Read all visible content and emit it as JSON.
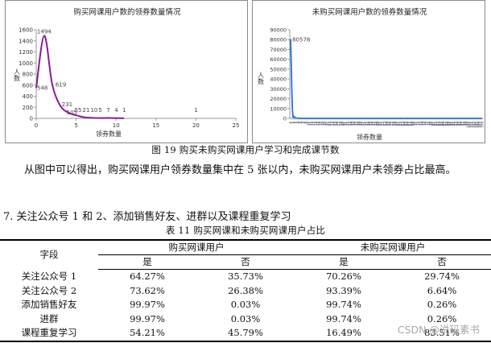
{
  "chart_data": [
    {
      "type": "line",
      "title": "购买网课用户数的领券数量情况",
      "xlabel": "领券数量",
      "ylabel": "人数",
      "xlim": [
        0,
        25
      ],
      "ylim": [
        0,
        1600
      ],
      "xticks": [
        "0",
        "5",
        "10",
        "15",
        "20",
        "25"
      ],
      "yticks": [
        "0",
        "200",
        "400",
        "600",
        "800",
        "1000",
        "1200",
        "1400",
        "1600"
      ],
      "grid": false,
      "color": "#8b1a9b",
      "points": [
        {
          "x": 0,
          "y": 548,
          "label": "548"
        },
        {
          "x": 1,
          "y": 1494,
          "label": "1494"
        },
        {
          "x": 2,
          "y": 619,
          "label": "619"
        },
        {
          "x": 3,
          "y": 231,
          "label": "231"
        },
        {
          "x": 4,
          "y": 105,
          "label": "105"
        },
        {
          "x": 5,
          "y": 55,
          "label": "55"
        },
        {
          "x": 6,
          "y": 21,
          "label": "21"
        },
        {
          "x": 7,
          "y": 10,
          "label": "10"
        },
        {
          "x": 8,
          "y": 5,
          "label": "5"
        },
        {
          "x": 9,
          "y": 7,
          "label": "7"
        },
        {
          "x": 10,
          "y": 4,
          "label": "4"
        },
        {
          "x": 11,
          "y": 1,
          "label": "1"
        },
        {
          "x": 20,
          "y": 1,
          "label": "1"
        }
      ]
    },
    {
      "type": "line",
      "title": "未购买网课用户数的领券数量情况",
      "xlabel": "领券数量",
      "ylabel": "人数",
      "ylim": [
        0,
        90000
      ],
      "yticks": [
        "0",
        "10000",
        "20000",
        "30000",
        "40000",
        "50000",
        "60000",
        "70000",
        "80000",
        "90000"
      ],
      "grid": false,
      "color": "#2a6fd6",
      "x": [
        "0",
        "1",
        "2",
        "3",
        "4",
        "5",
        "6",
        "7",
        "8",
        "9",
        "10",
        "11",
        "12",
        "13",
        "14",
        "15",
        "16",
        "17",
        "18",
        "19",
        "20",
        "21",
        "22",
        "23",
        "24",
        "25",
        "26",
        "27",
        "28",
        "29",
        "30",
        "31",
        "32",
        "33",
        "34",
        "35",
        "36",
        "37",
        "38",
        "39",
        "40",
        "41",
        "42",
        "43",
        "44",
        "45",
        "46",
        "47",
        "48",
        "49",
        "50",
        "51",
        "52",
        "53",
        "54",
        "55",
        "56",
        "57",
        "58",
        "59",
        "60",
        "61",
        "62",
        "63",
        "64",
        "65",
        "66",
        "67",
        "68",
        "69",
        "70",
        "71",
        "72",
        "73",
        "74",
        "75",
        "76",
        "77",
        "78",
        "79",
        "80",
        "81",
        "82",
        "83",
        "84",
        "85",
        "86",
        "87",
        "88",
        "89",
        "90",
        "91",
        "92",
        "93",
        "94",
        "95",
        "96",
        "97",
        "98",
        "99",
        "100",
        "101",
        "102",
        "103",
        "104",
        "105",
        "106",
        "107",
        "108"
      ],
      "xticks_shown": [
        "0",
        "1",
        "2",
        "3",
        "4",
        "5",
        "6",
        "7",
        "8",
        "9",
        "10",
        "11",
        "12",
        "13",
        "14",
        "15",
        "16",
        "17",
        "18",
        "19",
        "20",
        "21",
        "22",
        "23",
        "24",
        "25",
        "26",
        "27",
        "28",
        "29",
        "30",
        "31",
        "32",
        "33",
        "34",
        "35",
        "36",
        "37",
        "38",
        "39",
        "40",
        "41",
        "42",
        "43",
        "44",
        "45",
        "46",
        "47",
        "48",
        "49",
        "50",
        "51",
        "52",
        "53",
        "54",
        "55",
        "56",
        "57",
        "58",
        "59",
        "60",
        "61",
        "62",
        "63",
        "64",
        "65",
        "66",
        "67",
        "68",
        "69",
        "70",
        "71",
        "72",
        "73",
        "74",
        "75",
        "76",
        "77",
        "78",
        "79",
        "80",
        "81",
        "82",
        "83",
        "84",
        "85",
        "86",
        "87",
        "88",
        "89",
        "90",
        "91",
        "92",
        "93",
        "94",
        "95",
        "96",
        "97",
        "98",
        "99",
        "100",
        "101",
        "102",
        "103",
        "104",
        "105",
        "106",
        "107",
        "108"
      ],
      "peak_label": "80578",
      "values": [
        80578,
        9000,
        1800,
        500,
        200,
        90,
        40,
        20,
        10,
        6,
        4,
        3,
        2,
        2,
        1,
        1,
        1,
        1,
        1,
        1,
        1,
        1,
        1,
        1,
        1,
        1,
        1,
        1,
        1,
        1,
        1,
        1,
        1,
        1,
        1,
        1,
        1,
        1,
        1,
        1,
        1,
        1,
        1,
        1,
        1,
        1,
        1,
        1,
        1,
        1,
        1,
        1,
        1,
        1,
        1,
        1,
        1,
        1,
        1,
        1,
        1,
        1,
        1,
        1,
        1,
        1,
        1,
        1,
        1,
        1,
        1,
        1,
        1,
        1,
        1,
        1,
        1,
        1,
        1,
        1,
        1,
        1,
        1,
        1,
        1,
        1,
        1,
        1,
        1,
        1,
        1,
        1,
        1,
        1,
        1,
        1,
        1,
        1,
        1,
        1,
        1,
        1,
        1,
        1,
        1,
        1,
        1,
        1,
        1
      ]
    }
  ],
  "figure_caption": "图 19  购买未购买网课用户学习和完成课节数",
  "paragraph": "从图中可以得出，购买网课用户领券数量集中在 5 张以内，未购买网课用户未领券占比最高。",
  "section_heading": "7.  关注公众号 1 和 2、添加销售好友、进群以及课程重复学习",
  "table": {
    "caption": "表 11  购买网课和未购买网课用户占比",
    "field_header": "字段",
    "group_headers": [
      "购买网课用户",
      "未购买网课用户"
    ],
    "sub_headers": [
      "是",
      "否",
      "是",
      "否"
    ],
    "rows": [
      {
        "field": "关注公众号 1",
        "values": [
          "64.27%",
          "35.73%",
          "70.26%",
          "29.74%"
        ]
      },
      {
        "field": "关注公众号 2",
        "values": [
          "73.62%",
          "26.38%",
          "93.39%",
          "6.64%"
        ]
      },
      {
        "field": "添加销售好友",
        "values": [
          "99.97%",
          "0.03%",
          "99.74%",
          "0.26%"
        ]
      },
      {
        "field": "进群",
        "values": [
          "99.97%",
          "0.03%",
          "99.74%",
          "0.26%"
        ]
      },
      {
        "field": "课程重复学习",
        "values": [
          "54.21%",
          "45.79%",
          "16.49%",
          "83.51%"
        ]
      }
    ]
  },
  "watermark": "CSDN @说码素书"
}
